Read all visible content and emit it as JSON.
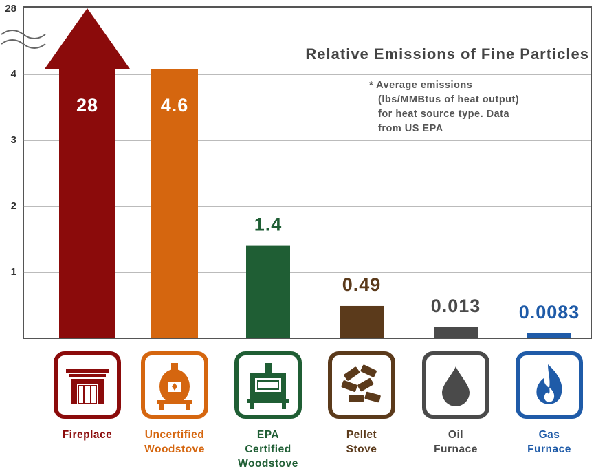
{
  "chart_data": {
    "type": "bar",
    "title": "Relative Emissions of Fine Particles",
    "note_lines": [
      "* Average emissions",
      "(lbs/MMBtus of heat output)",
      "for heat source type. Data",
      "from US EPA"
    ],
    "y_ticks": [
      "28",
      "4",
      "3",
      "2",
      "1"
    ],
    "ylim": [
      0,
      4
    ],
    "axis_break": true,
    "grid": true,
    "categories": [
      {
        "lines": [
          "Fireplace"
        ],
        "value": 28,
        "label": "28",
        "color": "#8b0b0b",
        "icon": "fireplace-icon"
      },
      {
        "lines": [
          "Uncertified",
          "Woodstove"
        ],
        "value": 4.6,
        "label": "4.6",
        "color": "#d5660f",
        "icon": "woodstove-icon"
      },
      {
        "lines": [
          "EPA",
          "Certified",
          "Woodstove"
        ],
        "value": 1.4,
        "label": "1.4",
        "color": "#1f5e34",
        "icon": "certified-woodstove-icon"
      },
      {
        "lines": [
          "Pellet",
          "Stove"
        ],
        "value": 0.49,
        "label": "0.49",
        "color": "#5b3a1b",
        "icon": "pellets-icon"
      },
      {
        "lines": [
          "Oil",
          "Furnace"
        ],
        "value": 0.013,
        "label": "0.013",
        "color": "#4a4a4a",
        "icon": "oil-drop-icon"
      },
      {
        "lines": [
          "Gas",
          "Furnace"
        ],
        "value": 0.0083,
        "label": "0.0083",
        "color": "#1f5ba8",
        "icon": "gas-flame-icon"
      }
    ]
  }
}
